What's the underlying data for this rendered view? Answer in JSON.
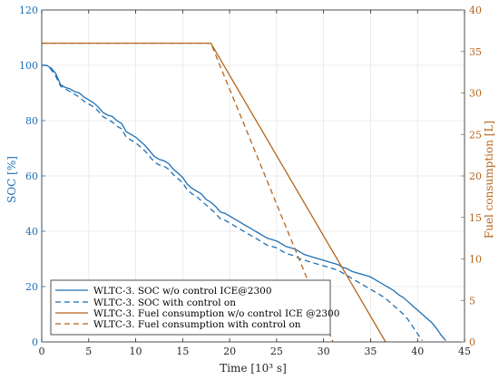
{
  "chart_data": {
    "type": "line",
    "xlabel": "Time [10³ s]",
    "ylabel_left": "SOC [%]",
    "ylabel_right": "Fuel consumption [L]",
    "xlim": [
      0,
      45
    ],
    "ylim_left": [
      0,
      120
    ],
    "ylim_right": [
      0,
      40
    ],
    "x_ticks": [
      0,
      5,
      10,
      15,
      20,
      25,
      30,
      35,
      40,
      45
    ],
    "y_left_ticks": [
      0,
      20,
      40,
      60,
      80,
      100,
      120
    ],
    "y_right_ticks": [
      0,
      5,
      10,
      15,
      20,
      25,
      30,
      35,
      40
    ],
    "grid": true,
    "legend_position": "bottom-left",
    "colors": {
      "soc": "#1f6fb4",
      "fuel": "#b5651d",
      "grid": "#e6e6e6",
      "axis_right": "#b5651d"
    },
    "series": [
      {
        "name": "WLTC-3. SOC w/o control ICE@2300",
        "axis": "left",
        "style": "solid",
        "color": "#1f6fb4",
        "x": [
          0,
          0.5,
          1,
          1.5,
          2,
          2.5,
          3,
          3.5,
          4,
          4.5,
          5,
          5.5,
          6,
          6.5,
          7,
          7.5,
          8,
          8.5,
          9,
          9.5,
          10,
          10.5,
          11,
          11.5,
          12,
          12.5,
          13,
          13.5,
          14,
          14.5,
          15,
          15.5,
          16,
          16.5,
          17,
          17.5,
          18,
          18.5,
          19,
          19.5,
          20,
          20.5,
          21,
          21.5,
          22,
          22.5,
          23,
          23.5,
          24,
          24.5,
          25,
          25.5,
          26,
          26.5,
          27,
          27.5,
          28,
          28.5,
          29,
          29.5,
          30,
          30.5,
          31,
          31.5,
          32,
          32.5,
          33,
          33.5,
          34,
          34.5,
          35,
          35.5,
          36,
          36.5,
          37,
          37.5,
          38,
          38.5,
          39,
          39.5,
          40,
          40.5,
          41,
          41.5,
          42,
          42.5,
          43
        ],
        "y": [
          100,
          100,
          99,
          97,
          93,
          92,
          91.5,
          90.5,
          90,
          88.5,
          87.5,
          86.5,
          85,
          83,
          82,
          81.5,
          80,
          79,
          76,
          75,
          74,
          72.5,
          71,
          69,
          67,
          66,
          65.5,
          64.5,
          62.5,
          61,
          59.5,
          57,
          55.5,
          54.5,
          53.5,
          51.5,
          50.5,
          49,
          47,
          46.5,
          45.5,
          44.5,
          43.5,
          42.5,
          41.5,
          40.5,
          39.5,
          38.5,
          37.5,
          37,
          36.5,
          35.5,
          34.5,
          34,
          33.5,
          32.5,
          31.5,
          31,
          30.5,
          30,
          29.5,
          29,
          28.5,
          28,
          27,
          26.5,
          25.5,
          25,
          24.5,
          24,
          23.5,
          22.5,
          21.5,
          20.5,
          19.5,
          18.5,
          17,
          16,
          14.5,
          13,
          11.5,
          10,
          8.5,
          7,
          5,
          2.5,
          0.5
        ]
      },
      {
        "name": "WLTC-3. SOC with control on",
        "axis": "left",
        "style": "dashed",
        "color": "#1f6fb4",
        "x": [
          0,
          0.5,
          1,
          1.5,
          2,
          2.5,
          3,
          3.5,
          4,
          4.5,
          5,
          5.5,
          6,
          6.5,
          7,
          7.5,
          8,
          8.5,
          9,
          9.5,
          10,
          10.5,
          11,
          11.5,
          12,
          12.5,
          13,
          13.5,
          14,
          14.5,
          15,
          15.5,
          16,
          16.5,
          17,
          17.5,
          18,
          18.5,
          19,
          19.5,
          20,
          20.5,
          21,
          21.5,
          22,
          22.5,
          23,
          23.5,
          24,
          24.5,
          25,
          25.5,
          26,
          26.5,
          27,
          27.5,
          28,
          28.5,
          29,
          29.5,
          30,
          30.5,
          31,
          31.5,
          32,
          32.5,
          33,
          33.5,
          34,
          34.5,
          35,
          35.5,
          36,
          36.5,
          37,
          37.5,
          38,
          38.5,
          39,
          39.5,
          40,
          40.5
        ],
        "y": [
          100,
          100,
          98.5,
          96,
          92.5,
          91.5,
          90.5,
          89.5,
          88.5,
          87,
          86,
          85,
          83.5,
          81.5,
          80.5,
          79.5,
          78,
          77,
          74,
          73,
          72,
          70.5,
          69,
          67,
          65,
          64,
          63.5,
          62.5,
          60.5,
          59,
          57.5,
          55,
          53.5,
          52.5,
          51,
          49.5,
          48,
          46.5,
          44.5,
          44,
          43,
          42,
          41,
          40,
          39,
          38,
          37,
          36,
          35,
          34.5,
          34,
          33,
          32,
          31.5,
          31,
          30,
          29.5,
          29,
          28.5,
          28,
          27.5,
          27,
          26.5,
          26,
          25,
          24,
          23,
          22,
          21,
          20,
          19,
          18,
          17,
          16,
          14.5,
          13,
          11.5,
          10,
          8,
          5.5,
          3,
          0.5
        ]
      },
      {
        "name": "WLTC-3. Fuel consumption w/o control ICE @2300",
        "axis": "right",
        "style": "solid",
        "color": "#b5651d",
        "x": [
          0,
          18,
          36.6
        ],
        "y": [
          36,
          36,
          0
        ]
      },
      {
        "name": "WLTC-3. Fuel consumption with control on",
        "axis": "right",
        "style": "dashed",
        "color": "#b5651d",
        "x": [
          0,
          18,
          31
        ],
        "y": [
          36,
          36,
          0
        ]
      }
    ]
  }
}
